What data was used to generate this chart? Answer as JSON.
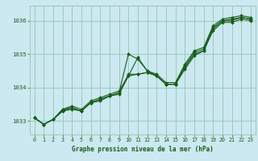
{
  "title": "Graphe pression niveau de la mer (hPa)",
  "bg_color": "#cce8f0",
  "grid_color": "#99ccbb",
  "line_color": "#1a5c1a",
  "marker_color": "#1a5c1a",
  "xlim": [
    -0.5,
    23.5
  ],
  "ylim": [
    1032.6,
    1036.45
  ],
  "yticks": [
    1033,
    1034,
    1035,
    1036
  ],
  "xticks": [
    0,
    1,
    2,
    3,
    4,
    5,
    6,
    7,
    8,
    9,
    10,
    11,
    12,
    13,
    14,
    15,
    16,
    17,
    18,
    19,
    20,
    21,
    22,
    23
  ],
  "series": [
    [
      1033.1,
      1032.9,
      1033.05,
      1033.35,
      1033.4,
      1033.3,
      1033.55,
      1033.65,
      1033.75,
      1033.85,
      1035.0,
      1034.85,
      1034.5,
      1034.35,
      1034.1,
      1034.1,
      1034.65,
      1035.05,
      1035.15,
      1035.8,
      1036.0,
      1036.05,
      1036.1,
      1036.05
    ],
    [
      1033.1,
      1032.9,
      1033.05,
      1033.35,
      1033.45,
      1033.35,
      1033.6,
      1033.7,
      1033.8,
      1033.9,
      1034.35,
      1034.9,
      1034.5,
      1034.4,
      1034.15,
      1034.15,
      1034.7,
      1035.1,
      1035.2,
      1035.85,
      1036.05,
      1036.1,
      1036.15,
      1036.1
    ],
    [
      1033.1,
      1032.9,
      1033.05,
      1033.3,
      1033.35,
      1033.3,
      1033.55,
      1033.65,
      1033.75,
      1033.85,
      1034.4,
      1034.4,
      1034.45,
      1034.35,
      1034.1,
      1034.1,
      1034.6,
      1035.0,
      1035.1,
      1035.75,
      1036.0,
      1036.0,
      1036.1,
      1036.05
    ],
    [
      1033.1,
      1032.9,
      1033.05,
      1033.3,
      1033.4,
      1033.3,
      1033.55,
      1033.6,
      1033.75,
      1033.8,
      1034.35,
      1034.4,
      1034.45,
      1034.35,
      1034.1,
      1034.1,
      1034.55,
      1034.95,
      1035.1,
      1035.7,
      1035.95,
      1035.95,
      1036.05,
      1036.0
    ]
  ]
}
